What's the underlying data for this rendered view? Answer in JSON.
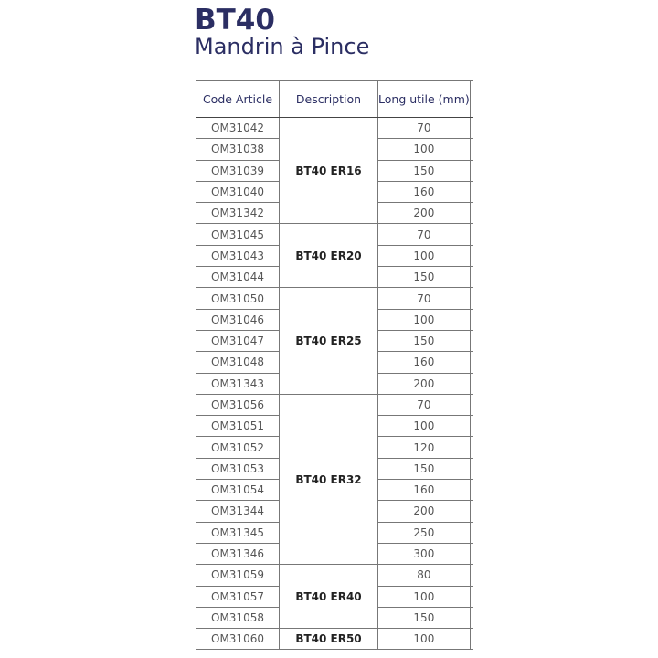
{
  "title": "BT40",
  "subtitle": "Mandrin à Pince",
  "table": {
    "headers": [
      "Code Article",
      "Description",
      "Long utile (mm)"
    ],
    "groups": [
      {
        "description": "BT40 ER16",
        "rows": [
          [
            "OM31042",
            "70"
          ],
          [
            "OM31038",
            "100"
          ],
          [
            "OM31039",
            "150"
          ],
          [
            "OM31040",
            "160"
          ],
          [
            "OM31342",
            "200"
          ]
        ]
      },
      {
        "description": "BT40 ER20",
        "rows": [
          [
            "OM31045",
            "70"
          ],
          [
            "OM31043",
            "100"
          ],
          [
            "OM31044",
            "150"
          ]
        ]
      },
      {
        "description": "BT40 ER25",
        "rows": [
          [
            "OM31050",
            "70"
          ],
          [
            "OM31046",
            "100"
          ],
          [
            "OM31047",
            "150"
          ],
          [
            "OM31048",
            "160"
          ],
          [
            "OM31343",
            "200"
          ]
        ]
      },
      {
        "description": "BT40 ER32",
        "rows": [
          [
            "OM31056",
            "70"
          ],
          [
            "OM31051",
            "100"
          ],
          [
            "OM31052",
            "120"
          ],
          [
            "OM31053",
            "150"
          ],
          [
            "OM31054",
            "160"
          ],
          [
            "OM31344",
            "200"
          ],
          [
            "OM31345",
            "250"
          ],
          [
            "OM31346",
            "300"
          ]
        ]
      },
      {
        "description": "BT40 ER40",
        "rows": [
          [
            "OM31059",
            "80"
          ],
          [
            "OM31057",
            "100"
          ],
          [
            "OM31058",
            "150"
          ]
        ]
      },
      {
        "description": "BT40 ER50",
        "rows": [
          [
            "OM31060",
            "100"
          ]
        ]
      }
    ]
  }
}
